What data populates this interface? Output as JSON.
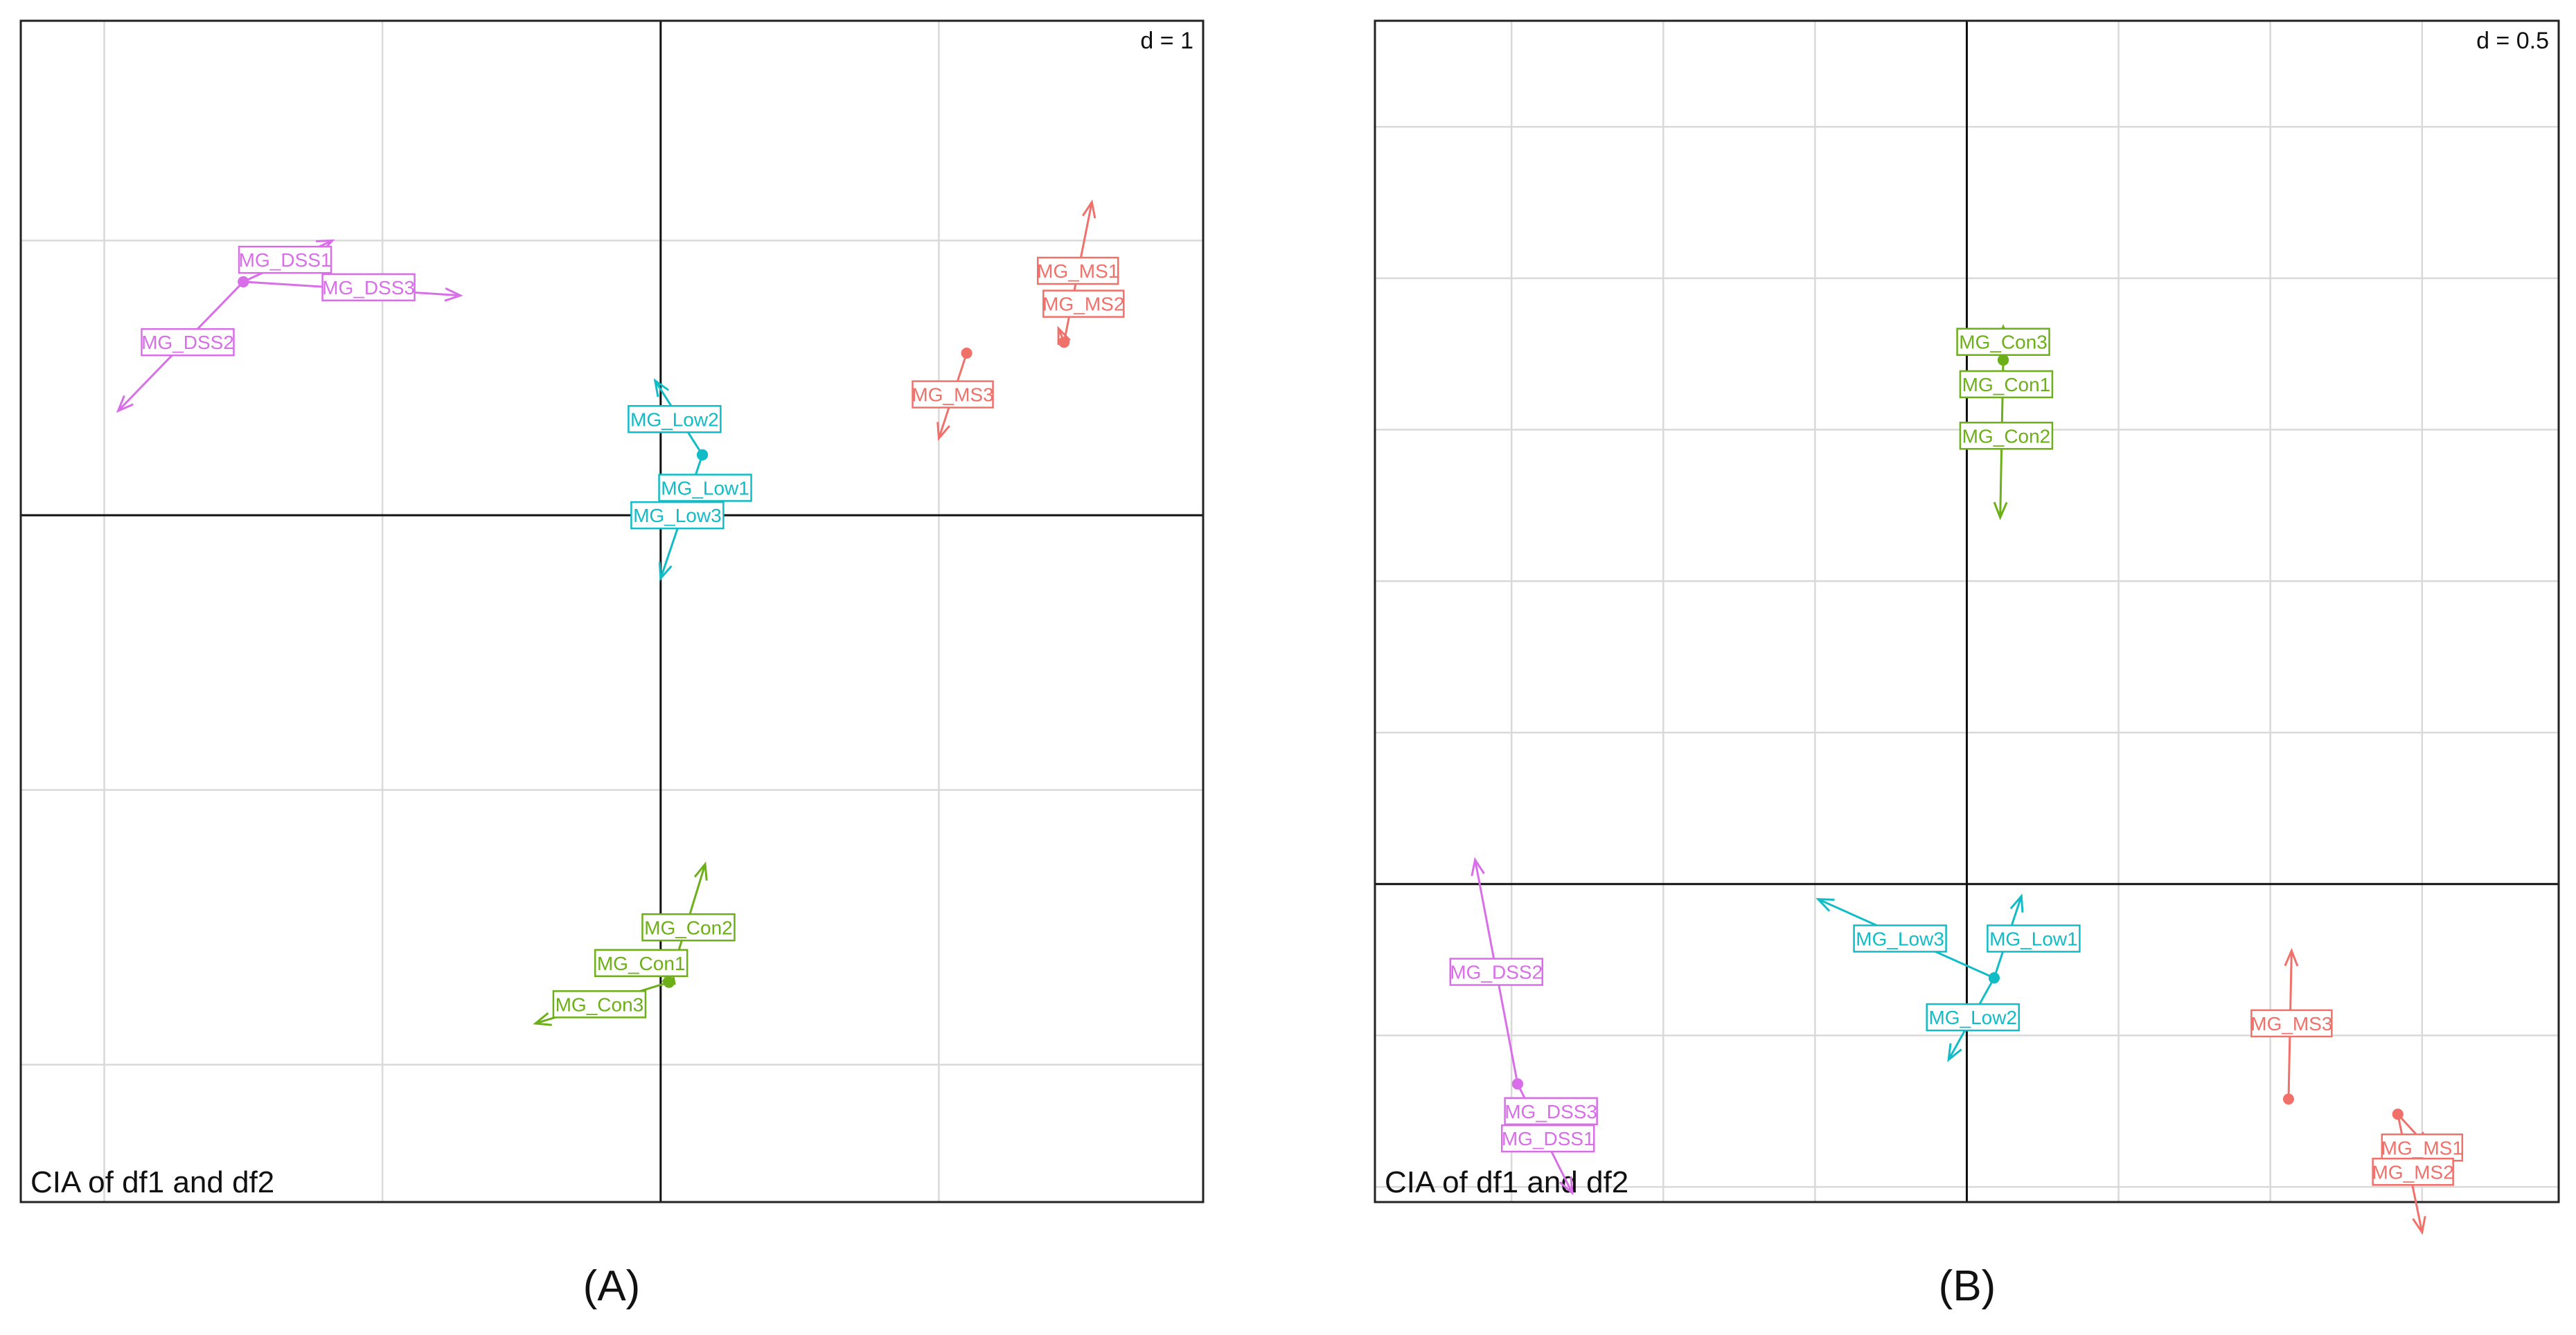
{
  "colors": {
    "DSS": "#d96ee9",
    "MS": "#f0706a",
    "Low": "#11bcc6",
    "Con": "#6caf18",
    "frame": "#222222",
    "grid": "#d9d9d9",
    "axis": "#111111"
  },
  "chart_data": [
    {
      "type": "scatter",
      "panel_label": "(A)",
      "title": "CIA of df1 and df2",
      "d_label": "d = 1",
      "xlim": [
        -2.3,
        1.95
      ],
      "ylim": [
        -2.5,
        1.8
      ],
      "grid_x": [
        -2,
        -1,
        0,
        1
      ],
      "grid_y": [
        -2,
        -1,
        0,
        1
      ],
      "points": [
        {
          "label": "MG_DSS1",
          "group": "DSS",
          "x": -1.5,
          "y": 0.85,
          "tip": [
            -1.18,
            1.0
          ],
          "lbl": [
            -1.35,
            0.93
          ]
        },
        {
          "label": "MG_DSS2",
          "group": "DSS",
          "x": -1.5,
          "y": 0.85,
          "tip": [
            -1.95,
            0.38
          ],
          "lbl": [
            -1.7,
            0.63
          ]
        },
        {
          "label": "MG_DSS3",
          "group": "DSS",
          "x": -1.5,
          "y": 0.85,
          "tip": [
            -0.72,
            0.8
          ],
          "lbl": [
            -1.05,
            0.83
          ]
        },
        {
          "label": "MG_MS1",
          "group": "MS",
          "x": 1.45,
          "y": 0.63,
          "tip": [
            1.55,
            1.14
          ],
          "lbl": [
            1.5,
            0.89
          ]
        },
        {
          "label": "MG_MS2",
          "group": "MS",
          "x": 1.45,
          "y": 0.63,
          "tip": [
            1.43,
            0.68
          ],
          "lbl": [
            1.52,
            0.77
          ]
        },
        {
          "label": "MG_MS3",
          "group": "MS",
          "x": 1.1,
          "y": 0.59,
          "tip": [
            1.0,
            0.28
          ],
          "lbl": [
            1.05,
            0.44
          ]
        },
        {
          "label": "MG_Low1",
          "group": "Low",
          "x": 0.15,
          "y": 0.22,
          "tip": [
            0.15,
            0.24
          ],
          "lbl": [
            0.16,
            0.1
          ]
        },
        {
          "label": "MG_Low2",
          "group": "Low",
          "x": 0.15,
          "y": 0.22,
          "tip": [
            -0.02,
            0.49
          ],
          "lbl": [
            0.05,
            0.35
          ]
        },
        {
          "label": "MG_Low3",
          "group": "Low",
          "x": 0.15,
          "y": 0.22,
          "tip": [
            0.0,
            -0.23
          ],
          "lbl": [
            0.06,
            0.0
          ]
        },
        {
          "label": "MG_Con1",
          "group": "Con",
          "x": 0.03,
          "y": -1.7,
          "tip": [
            0.04,
            -1.65
          ],
          "lbl": [
            -0.07,
            -1.63
          ]
        },
        {
          "label": "MG_Con2",
          "group": "Con",
          "x": 0.03,
          "y": -1.7,
          "tip": [
            0.16,
            -1.27
          ],
          "lbl": [
            0.1,
            -1.5
          ]
        },
        {
          "label": "MG_Con3",
          "group": "Con",
          "x": 0.03,
          "y": -1.7,
          "tip": [
            -0.45,
            -1.85
          ],
          "lbl": [
            -0.22,
            -1.78
          ]
        }
      ]
    },
    {
      "type": "scatter",
      "panel_label": "(B)",
      "title": "CIA of df1 and df2",
      "d_label": "d = 0.5",
      "xlim": [
        -1.95,
        1.95
      ],
      "ylim": [
        -1.05,
        2.85
      ],
      "grid_x": [
        -1.5,
        -1.0,
        -0.5,
        0,
        0.5,
        1.0,
        1.5
      ],
      "grid_y": [
        -1.0,
        -0.5,
        0,
        0.5,
        1.0,
        1.5,
        2.0,
        2.5
      ],
      "points": [
        {
          "label": "MG_Con1",
          "group": "Con",
          "x": 0.12,
          "y": 1.73,
          "tip": [
            0.12,
            1.75
          ],
          "lbl": [
            0.13,
            1.65
          ]
        },
        {
          "label": "MG_Con2",
          "group": "Con",
          "x": 0.12,
          "y": 1.73,
          "tip": [
            0.11,
            1.21
          ],
          "lbl": [
            0.13,
            1.48
          ]
        },
        {
          "label": "MG_Con3",
          "group": "Con",
          "x": 0.12,
          "y": 1.73,
          "tip": [
            0.12,
            1.84
          ],
          "lbl": [
            0.12,
            1.79
          ]
        },
        {
          "label": "MG_Low1",
          "group": "Low",
          "x": 0.09,
          "y": -0.31,
          "tip": [
            0.18,
            -0.04
          ],
          "lbl": [
            0.22,
            -0.18
          ]
        },
        {
          "label": "MG_Low2",
          "group": "Low",
          "x": 0.09,
          "y": -0.31,
          "tip": [
            -0.06,
            -0.58
          ],
          "lbl": [
            0.02,
            -0.44
          ]
        },
        {
          "label": "MG_Low3",
          "group": "Low",
          "x": 0.09,
          "y": -0.31,
          "tip": [
            -0.49,
            -0.05
          ],
          "lbl": [
            -0.22,
            -0.18
          ]
        },
        {
          "label": "MG_DSS1",
          "group": "DSS",
          "x": -1.48,
          "y": -0.66,
          "tip": [
            -1.3,
            -1.02
          ],
          "lbl": [
            -1.38,
            -0.84
          ]
        },
        {
          "label": "MG_DSS2",
          "group": "DSS",
          "x": -1.48,
          "y": -0.66,
          "tip": [
            -1.62,
            0.08
          ],
          "lbl": [
            -1.55,
            -0.29
          ]
        },
        {
          "label": "MG_DSS3",
          "group": "DSS",
          "x": -1.48,
          "y": -0.66,
          "tip": [
            -1.47,
            -0.68
          ],
          "lbl": [
            -1.37,
            -0.75
          ]
        },
        {
          "label": "MG_MS1",
          "group": "MS",
          "x": 1.42,
          "y": -0.76,
          "tip": [
            1.52,
            -0.87
          ],
          "lbl": [
            1.5,
            -0.87
          ]
        },
        {
          "label": "MG_MS2",
          "group": "MS",
          "x": 1.42,
          "y": -0.76,
          "tip": [
            1.5,
            -1.15
          ],
          "lbl": [
            1.47,
            -0.95
          ]
        },
        {
          "label": "MG_MS3",
          "group": "MS",
          "x": 1.06,
          "y": -0.71,
          "tip": [
            1.07,
            -0.22
          ],
          "lbl": [
            1.07,
            -0.46
          ]
        }
      ]
    }
  ]
}
